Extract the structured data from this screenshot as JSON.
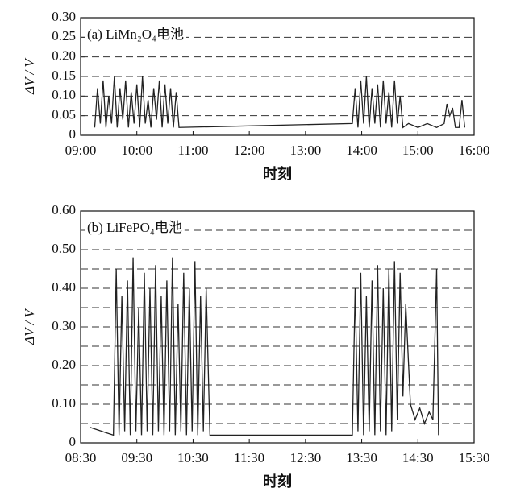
{
  "chart_data": [
    {
      "type": "line",
      "annotation": "(a) LiMn₂O₄电池",
      "xlabel": "时刻",
      "ylabel": "ΔV / V",
      "grid": true,
      "xlim": [
        "09:00",
        "16:00"
      ],
      "xticks": [
        "09:00",
        "10:00",
        "11:00",
        "12:00",
        "13:00",
        "14:00",
        "15:00",
        "16:00"
      ],
      "ylim": [
        0,
        0.3
      ],
      "yticks": [
        0,
        0.05,
        {
          "value": 0.1,
          "label": "0.10"
        },
        0.15,
        {
          "value": 0.2,
          "label": "0.20"
        },
        0.25,
        {
          "value": 0.3,
          "label": "0.30"
        }
      ],
      "series": [
        {
          "color": "#222222",
          "x": [
            "09:15",
            "09:18",
            "09:21",
            "09:24",
            "09:27",
            "09:30",
            "09:33",
            "09:36",
            "09:39",
            "09:42",
            "09:45",
            "09:48",
            "09:51",
            "09:54",
            "09:57",
            "10:00",
            "10:03",
            "10:06",
            "10:09",
            "10:12",
            "10:15",
            "10:18",
            "10:21",
            "10:24",
            "10:27",
            "10:30",
            "10:33",
            "10:36",
            "10:39",
            "10:42",
            "10:45",
            "13:50",
            "13:53",
            "13:56",
            "13:59",
            "14:02",
            "14:05",
            "14:08",
            "14:11",
            "14:14",
            "14:17",
            "14:20",
            "14:23",
            "14:26",
            "14:29",
            "14:32",
            "14:35",
            "14:38",
            "14:41",
            "14:44",
            "14:50",
            "15:00",
            "15:10",
            "15:20",
            "15:28",
            "15:31",
            "15:34",
            "15:37",
            "15:40",
            "15:44",
            "15:47",
            "15:50"
          ],
          "values": [
            0.02,
            0.12,
            0.03,
            0.14,
            0.02,
            0.1,
            0.03,
            0.15,
            0.02,
            0.12,
            0.04,
            0.14,
            0.02,
            0.11,
            0.03,
            0.13,
            0.02,
            0.15,
            0.03,
            0.09,
            0.02,
            0.12,
            0.04,
            0.14,
            0.02,
            0.13,
            0.03,
            0.12,
            0.02,
            0.11,
            0.02,
            0.03,
            0.12,
            0.02,
            0.14,
            0.03,
            0.15,
            0.02,
            0.12,
            0.03,
            0.13,
            0.02,
            0.14,
            0.03,
            0.11,
            0.02,
            0.14,
            0.03,
            0.1,
            0.02,
            0.03,
            0.02,
            0.03,
            0.02,
            0.03,
            0.08,
            0.05,
            0.07,
            0.02,
            0.02,
            0.09,
            0.02
          ]
        }
      ]
    },
    {
      "type": "line",
      "annotation": "(b) LiFePO₄电池",
      "xlabel": "时刻",
      "ylabel": "ΔV / V",
      "grid": true,
      "xlim": [
        "08:30",
        "15:30"
      ],
      "xticks": [
        "08:30",
        "09:30",
        "10:30",
        "11:30",
        "12:30",
        "13:30",
        "14:30",
        "15:30"
      ],
      "ylim": [
        0,
        0.6
      ],
      "yticks": [
        0,
        {
          "value": 0.1,
          "label": "0.10"
        },
        {
          "value": 0.2,
          "label": "0.20"
        },
        {
          "value": 0.3,
          "label": "0.30"
        },
        {
          "value": 0.4,
          "label": "0.40"
        },
        {
          "value": 0.5,
          "label": "0.50"
        },
        {
          "value": 0.6,
          "label": "0.60"
        }
      ],
      "yminorticks": [
        0.05,
        0.15,
        0.25,
        0.35,
        0.45,
        0.55
      ],
      "series": [
        {
          "color": "#222222",
          "x": [
            "08:40",
            "09:05",
            "09:08",
            "09:11",
            "09:14",
            "09:17",
            "09:20",
            "09:23",
            "09:26",
            "09:29",
            "09:32",
            "09:35",
            "09:38",
            "09:41",
            "09:44",
            "09:47",
            "09:50",
            "09:53",
            "09:56",
            "09:59",
            "10:02",
            "10:05",
            "10:08",
            "10:11",
            "10:14",
            "10:17",
            "10:20",
            "10:23",
            "10:26",
            "10:29",
            "10:32",
            "10:35",
            "10:38",
            "10:41",
            "10:44",
            "10:48",
            "13:20",
            "13:23",
            "13:26",
            "13:29",
            "13:32",
            "13:35",
            "13:38",
            "13:41",
            "13:44",
            "13:47",
            "13:50",
            "13:53",
            "13:56",
            "13:59",
            "14:02",
            "14:05",
            "14:08",
            "14:11",
            "14:14",
            "14:17",
            "14:22",
            "14:27",
            "14:32",
            "14:37",
            "14:42",
            "14:46",
            "14:50",
            "14:52"
          ],
          "values": [
            0.04,
            0.02,
            0.45,
            0.02,
            0.38,
            0.03,
            0.42,
            0.02,
            0.48,
            0.03,
            0.35,
            0.02,
            0.44,
            0.03,
            0.4,
            0.02,
            0.46,
            0.03,
            0.38,
            0.02,
            0.42,
            0.03,
            0.48,
            0.02,
            0.36,
            0.03,
            0.44,
            0.02,
            0.4,
            0.03,
            0.47,
            0.02,
            0.38,
            0.03,
            0.4,
            0.02,
            0.02,
            0.4,
            0.03,
            0.44,
            0.02,
            0.38,
            0.03,
            0.42,
            0.02,
            0.46,
            0.03,
            0.4,
            0.02,
            0.45,
            0.03,
            0.47,
            0.06,
            0.44,
            0.12,
            0.36,
            0.1,
            0.06,
            0.09,
            0.05,
            0.08,
            0.06,
            0.45,
            0.02
          ]
        }
      ]
    }
  ]
}
